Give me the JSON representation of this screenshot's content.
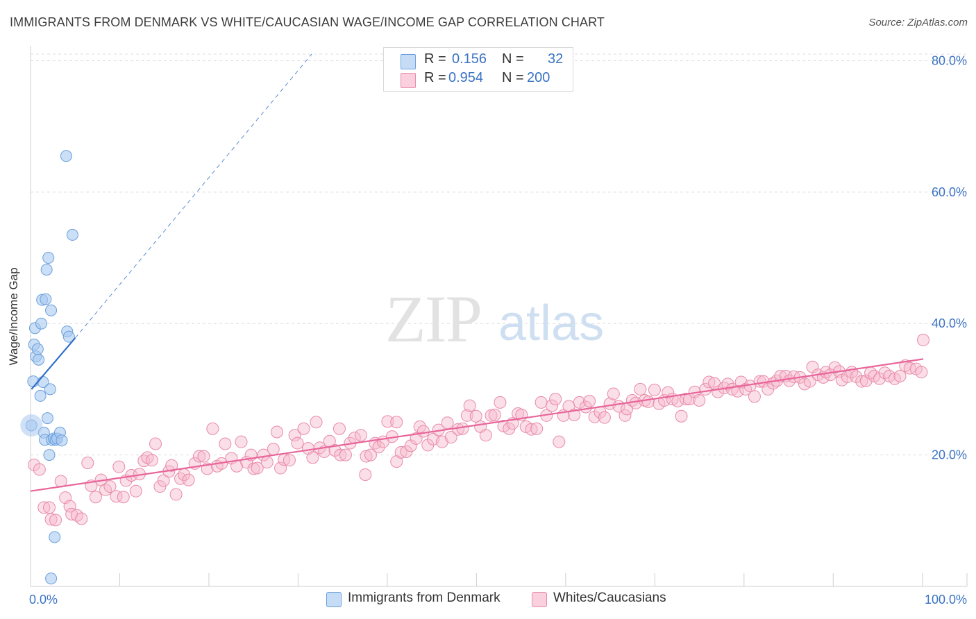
{
  "title": "IMMIGRANTS FROM DENMARK VS WHITE/CAUCASIAN WAGE/INCOME GAP CORRELATION CHART",
  "source": "Source: ZipAtlas.com",
  "watermark": {
    "zip": "ZIP",
    "atlas": "atlas"
  },
  "legend_top": {
    "r_label": "R =",
    "n_label": "N =",
    "rows": [
      {
        "r": "0.156",
        "n": "32",
        "color": "#a9c9f0"
      },
      {
        "r": "0.954",
        "n": "200",
        "color": "#f6b7cb"
      }
    ]
  },
  "colors": {
    "blue_fill": "#a9c9f0",
    "blue_stroke": "#6a9fdc",
    "blue_line": "#2f6fc6",
    "pink_fill": "#f6b7cb",
    "pink_stroke": "#e88aa8",
    "pink_line": "#e8659a",
    "axis_text": "#3b73c4"
  },
  "chart_data": {
    "type": "scatter",
    "title": "IMMIGRANTS FROM DENMARK VS WHITE/CAUCASIAN WAGE/INCOME GAP CORRELATION CHART",
    "xlabel": "",
    "ylabel": "Wage/Income Gap",
    "xlim": [
      0,
      100
    ],
    "ylim": [
      0,
      81
    ],
    "x_tick_labels": [
      "0.0%",
      "100.0%"
    ],
    "y_ticks": [
      20,
      40,
      60,
      80
    ],
    "y_tick_labels": [
      "20.0%",
      "40.0%",
      "60.0%",
      "80.0%"
    ],
    "grid": true,
    "legend_position": "bottom",
    "series": [
      {
        "name": "Immigrants from Denmark",
        "r": 0.156,
        "n": 32,
        "trend": {
          "x0": 0.1,
          "y0": 30,
          "x1": 5,
          "y1": 37.8,
          "dashed_to_x": 31.5,
          "dashed_to_y": 81
        },
        "points": [
          [
            0.1,
            24.5
          ],
          [
            0.3,
            31.2
          ],
          [
            0.4,
            36.8
          ],
          [
            0.5,
            39.3
          ],
          [
            0.6,
            35.0
          ],
          [
            0.8,
            36.1
          ],
          [
            0.9,
            34.5
          ],
          [
            1.1,
            29.0
          ],
          [
            1.2,
            40.0
          ],
          [
            1.3,
            43.6
          ],
          [
            1.4,
            31.1
          ],
          [
            1.5,
            23.4
          ],
          [
            1.6,
            22.3
          ],
          [
            1.7,
            43.7
          ],
          [
            1.8,
            48.2
          ],
          [
            1.9,
            25.6
          ],
          [
            2.0,
            50.0
          ],
          [
            2.1,
            20.0
          ],
          [
            2.2,
            30.0
          ],
          [
            2.3,
            42.0
          ],
          [
            2.4,
            22.3
          ],
          [
            2.6,
            22.5
          ],
          [
            2.7,
            7.5
          ],
          [
            2.8,
            22.3
          ],
          [
            3.0,
            22.5
          ],
          [
            3.3,
            23.4
          ],
          [
            3.5,
            22.2
          ],
          [
            4.0,
            65.5
          ],
          [
            4.1,
            38.8
          ],
          [
            4.3,
            38.0
          ],
          [
            4.7,
            53.5
          ],
          [
            2.3,
            1.2
          ]
        ]
      },
      {
        "name": "Whites/Caucasians",
        "r": 0.954,
        "n": 200,
        "trend": {
          "x0": 0,
          "y0": 14.5,
          "x1": 100,
          "y1": 34.6
        },
        "points": [
          [
            0.4,
            18.5
          ],
          [
            1.0,
            17.8
          ],
          [
            1.5,
            12.0
          ],
          [
            2.1,
            12.0
          ],
          [
            2.3,
            10.2
          ],
          [
            2.8,
            10.1
          ],
          [
            3.4,
            16.0
          ],
          [
            3.9,
            13.5
          ],
          [
            4.4,
            12.2
          ],
          [
            4.6,
            11.0
          ],
          [
            5.2,
            10.8
          ],
          [
            5.7,
            10.3
          ],
          [
            6.4,
            18.8
          ],
          [
            6.8,
            15.3
          ],
          [
            7.3,
            13.6
          ],
          [
            7.9,
            16.2
          ],
          [
            8.4,
            14.7
          ],
          [
            8.9,
            15.2
          ],
          [
            9.6,
            13.7
          ],
          [
            9.9,
            18.2
          ],
          [
            10.4,
            13.6
          ],
          [
            10.7,
            16.1
          ],
          [
            11.3,
            16.9
          ],
          [
            11.8,
            14.5
          ],
          [
            12.2,
            17.1
          ],
          [
            12.7,
            19.1
          ],
          [
            13.1,
            19.6
          ],
          [
            13.6,
            19.2
          ],
          [
            14.0,
            21.7
          ],
          [
            14.5,
            15.2
          ],
          [
            14.9,
            16.1
          ],
          [
            15.5,
            17.5
          ],
          [
            15.8,
            18.4
          ],
          [
            16.3,
            14.0
          ],
          [
            16.8,
            16.4
          ],
          [
            17.2,
            17.0
          ],
          [
            17.7,
            16.2
          ],
          [
            18.4,
            18.7
          ],
          [
            18.9,
            19.8
          ],
          [
            19.4,
            19.8
          ],
          [
            19.8,
            17.9
          ],
          [
            20.4,
            24.0
          ],
          [
            20.9,
            18.3
          ],
          [
            21.4,
            18.7
          ],
          [
            21.8,
            21.7
          ],
          [
            22.5,
            19.5
          ],
          [
            23.1,
            18.3
          ],
          [
            23.6,
            22.0
          ],
          [
            24.2,
            18.9
          ],
          [
            24.7,
            20.0
          ],
          [
            25.0,
            17.9
          ],
          [
            25.4,
            18.0
          ],
          [
            26.1,
            20.0
          ],
          [
            26.5,
            18.9
          ],
          [
            27.2,
            20.9
          ],
          [
            27.6,
            23.5
          ],
          [
            28.0,
            18.0
          ],
          [
            28.4,
            19.3
          ],
          [
            29.0,
            19.2
          ],
          [
            29.6,
            23.0
          ],
          [
            29.9,
            21.8
          ],
          [
            30.6,
            24.0
          ],
          [
            31.1,
            21.0
          ],
          [
            31.6,
            19.6
          ],
          [
            32.0,
            25.0
          ],
          [
            32.4,
            21.1
          ],
          [
            32.9,
            20.5
          ],
          [
            33.5,
            22.1
          ],
          [
            34.1,
            20.7
          ],
          [
            34.6,
            24.0
          ],
          [
            34.7,
            20.0
          ],
          [
            35.3,
            20.0
          ],
          [
            35.8,
            21.8
          ],
          [
            36.3,
            22.6
          ],
          [
            37.0,
            23.0
          ],
          [
            37.6,
            19.8
          ],
          [
            38.1,
            20.0
          ],
          [
            38.6,
            21.8
          ],
          [
            39.0,
            21.2
          ],
          [
            39.5,
            22.0
          ],
          [
            40.0,
            25.1
          ],
          [
            40.5,
            22.8
          ],
          [
            41.0,
            19.0
          ],
          [
            41.5,
            20.4
          ],
          [
            42.1,
            20.5
          ],
          [
            42.6,
            21.4
          ],
          [
            43.2,
            22.5
          ],
          [
            43.6,
            24.3
          ],
          [
            44.0,
            23.6
          ],
          [
            44.5,
            21.5
          ],
          [
            45.1,
            22.4
          ],
          [
            45.7,
            23.8
          ],
          [
            46.1,
            22.0
          ],
          [
            46.7,
            24.9
          ],
          [
            47.1,
            22.7
          ],
          [
            47.9,
            23.9
          ],
          [
            48.4,
            24.0
          ],
          [
            48.9,
            26.0
          ],
          [
            49.2,
            27.5
          ],
          [
            49.9,
            25.9
          ],
          [
            50.4,
            24.3
          ],
          [
            51.0,
            23.0
          ],
          [
            51.6,
            26.0
          ],
          [
            52.0,
            26.1
          ],
          [
            52.6,
            28.0
          ],
          [
            53.0,
            24.4
          ],
          [
            53.6,
            24.0
          ],
          [
            54.0,
            24.8
          ],
          [
            54.6,
            26.3
          ],
          [
            55.0,
            26.1
          ],
          [
            55.5,
            24.3
          ],
          [
            56.1,
            23.9
          ],
          [
            56.7,
            24.0
          ],
          [
            57.2,
            28.0
          ],
          [
            57.8,
            26.0
          ],
          [
            58.4,
            27.5
          ],
          [
            58.8,
            28.5
          ],
          [
            59.2,
            22.0
          ],
          [
            59.7,
            26.0
          ],
          [
            60.3,
            27.4
          ],
          [
            60.9,
            26.1
          ],
          [
            61.5,
            28.0
          ],
          [
            62.2,
            27.3
          ],
          [
            62.6,
            28.2
          ],
          [
            63.2,
            25.8
          ],
          [
            63.8,
            26.5
          ],
          [
            64.3,
            25.7
          ],
          [
            64.9,
            27.8
          ],
          [
            65.3,
            29.3
          ],
          [
            65.9,
            27.4
          ],
          [
            66.6,
            26.0
          ],
          [
            66.8,
            27.0
          ],
          [
            67.4,
            28.3
          ],
          [
            67.8,
            27.9
          ],
          [
            68.3,
            30.0
          ],
          [
            68.8,
            28.3
          ],
          [
            69.2,
            28.1
          ],
          [
            69.9,
            29.9
          ],
          [
            70.4,
            27.8
          ],
          [
            71.0,
            28.3
          ],
          [
            71.4,
            29.5
          ],
          [
            71.9,
            28.5
          ],
          [
            72.5,
            28.2
          ],
          [
            72.9,
            25.9
          ],
          [
            73.4,
            28.5
          ],
          [
            73.8,
            28.5
          ],
          [
            74.4,
            29.6
          ],
          [
            74.9,
            28.3
          ],
          [
            75.6,
            30.0
          ],
          [
            76.0,
            31.1
          ],
          [
            76.6,
            30.9
          ],
          [
            77.0,
            29.6
          ],
          [
            77.7,
            30.2
          ],
          [
            78.1,
            30.8
          ],
          [
            78.6,
            30.0
          ],
          [
            79.2,
            29.7
          ],
          [
            79.6,
            31.1
          ],
          [
            80.1,
            30.0
          ],
          [
            80.6,
            30.5
          ],
          [
            81.1,
            28.9
          ],
          [
            81.7,
            31.2
          ],
          [
            82.1,
            31.2
          ],
          [
            82.6,
            30.0
          ],
          [
            83.2,
            30.9
          ],
          [
            83.6,
            31.3
          ],
          [
            84.0,
            32.0
          ],
          [
            84.6,
            32.0
          ],
          [
            85.0,
            31.3
          ],
          [
            85.5,
            31.9
          ],
          [
            86.2,
            31.8
          ],
          [
            86.7,
            30.8
          ],
          [
            87.3,
            31.2
          ],
          [
            87.6,
            33.4
          ],
          [
            88.2,
            32.2
          ],
          [
            88.8,
            31.8
          ],
          [
            89.1,
            32.6
          ],
          [
            89.6,
            32.2
          ],
          [
            90.1,
            33.3
          ],
          [
            90.6,
            32.7
          ],
          [
            90.9,
            31.4
          ],
          [
            91.5,
            31.9
          ],
          [
            92.0,
            32.6
          ],
          [
            92.5,
            31.9
          ],
          [
            93.1,
            31.2
          ],
          [
            93.6,
            31.3
          ],
          [
            94.1,
            32.5
          ],
          [
            94.5,
            32.0
          ],
          [
            95.1,
            31.6
          ],
          [
            95.7,
            32.5
          ],
          [
            96.2,
            32.0
          ],
          [
            96.8,
            31.6
          ],
          [
            97.4,
            32.0
          ],
          [
            98.0,
            33.6
          ],
          [
            98.5,
            33.2
          ],
          [
            99.2,
            33.1
          ],
          [
            99.8,
            32.6
          ],
          [
            100.0,
            37.5
          ],
          [
            41.0,
            25.0
          ],
          [
            37.5,
            17.0
          ]
        ]
      }
    ]
  }
}
